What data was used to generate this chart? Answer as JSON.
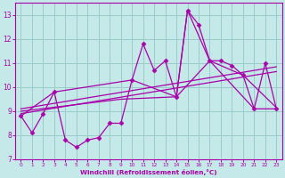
{
  "x_values": [
    0,
    1,
    2,
    3,
    4,
    5,
    6,
    7,
    8,
    9,
    10,
    11,
    12,
    13,
    14,
    15,
    16,
    17,
    18,
    19,
    20,
    21,
    22,
    23
  ],
  "main_y": [
    8.8,
    8.1,
    8.9,
    9.8,
    7.8,
    7.5,
    7.8,
    7.9,
    8.5,
    8.5,
    10.3,
    11.8,
    10.7,
    11.1,
    9.6,
    13.2,
    12.6,
    11.1,
    11.1,
    10.9,
    10.5,
    9.1,
    11.0,
    9.1
  ],
  "smooth1_x": [
    0,
    3,
    10,
    14,
    15,
    17,
    21,
    23
  ],
  "smooth1_y": [
    8.8,
    9.8,
    10.3,
    9.6,
    13.2,
    11.1,
    9.1,
    9.1
  ],
  "smooth2_x": [
    0,
    9,
    14,
    17,
    20,
    23
  ],
  "smooth2_y": [
    9.0,
    9.5,
    9.6,
    11.1,
    10.5,
    9.15
  ],
  "trend1_x": [
    0,
    23
  ],
  "trend1_y": [
    8.9,
    10.65
  ],
  "trend2_x": [
    0,
    23
  ],
  "trend2_y": [
    9.1,
    10.85
  ],
  "bg_color": "#c5e8e8",
  "line_color": "#aa00aa",
  "grid_color": "#99cccc",
  "xlabel": "Windchill (Refroidissement éolien,°C)",
  "ylim": [
    7,
    13.5
  ],
  "xlim": [
    -0.5,
    23.5
  ],
  "yticks": [
    7,
    8,
    9,
    10,
    11,
    12,
    13
  ],
  "xticks": [
    0,
    1,
    2,
    3,
    4,
    5,
    6,
    7,
    8,
    9,
    10,
    11,
    12,
    13,
    14,
    15,
    16,
    17,
    18,
    19,
    20,
    21,
    22,
    23
  ],
  "markersize": 2.5,
  "linewidth": 0.9
}
